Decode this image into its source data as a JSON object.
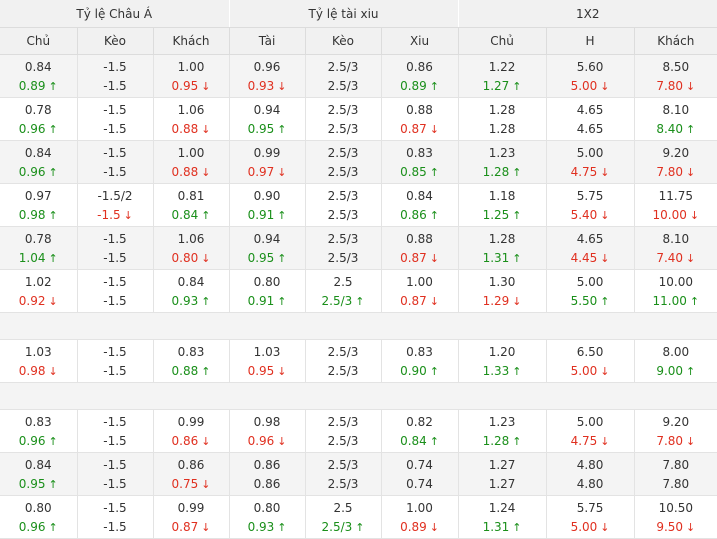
{
  "groups": [
    "Tỷ lệ Châu Á",
    "Tỷ lệ tài xiu",
    "1X2"
  ],
  "columns": [
    "Chủ",
    "Kèo",
    "Khách",
    "Tài",
    "Kèo",
    "Xiu",
    "Chủ",
    "H",
    "Khách"
  ],
  "arrows": {
    "up": "↑",
    "down": "↓"
  },
  "rows": [
    {
      "type": "data",
      "shade": true,
      "top": [
        "0.84",
        "-1.5",
        "1.00",
        "0.96",
        "2.5/3",
        "0.86",
        "1.22",
        "5.60",
        "8.50"
      ],
      "bottom": [
        {
          "v": "0.89",
          "d": "up"
        },
        {
          "v": "-1.5",
          "d": ""
        },
        {
          "v": "0.95",
          "d": "down"
        },
        {
          "v": "0.93",
          "d": "down"
        },
        {
          "v": "2.5/3",
          "d": ""
        },
        {
          "v": "0.89",
          "d": "up"
        },
        {
          "v": "1.27",
          "d": "up"
        },
        {
          "v": "5.00",
          "d": "down"
        },
        {
          "v": "7.80",
          "d": "down"
        }
      ]
    },
    {
      "type": "data",
      "shade": false,
      "top": [
        "0.78",
        "-1.5",
        "1.06",
        "0.94",
        "2.5/3",
        "0.88",
        "1.28",
        "4.65",
        "8.10"
      ],
      "bottom": [
        {
          "v": "0.96",
          "d": "up"
        },
        {
          "v": "-1.5",
          "d": ""
        },
        {
          "v": "0.88",
          "d": "down"
        },
        {
          "v": "0.95",
          "d": "up"
        },
        {
          "v": "2.5/3",
          "d": ""
        },
        {
          "v": "0.87",
          "d": "down"
        },
        {
          "v": "1.28",
          "d": ""
        },
        {
          "v": "4.65",
          "d": ""
        },
        {
          "v": "8.40",
          "d": "up"
        }
      ]
    },
    {
      "type": "data",
      "shade": true,
      "top": [
        "0.84",
        "-1.5",
        "1.00",
        "0.99",
        "2.5/3",
        "0.83",
        "1.23",
        "5.00",
        "9.20"
      ],
      "bottom": [
        {
          "v": "0.96",
          "d": "up"
        },
        {
          "v": "-1.5",
          "d": ""
        },
        {
          "v": "0.88",
          "d": "down"
        },
        {
          "v": "0.97",
          "d": "down"
        },
        {
          "v": "2.5/3",
          "d": ""
        },
        {
          "v": "0.85",
          "d": "up"
        },
        {
          "v": "1.28",
          "d": "up"
        },
        {
          "v": "4.75",
          "d": "down"
        },
        {
          "v": "7.80",
          "d": "down"
        }
      ]
    },
    {
      "type": "data",
      "shade": false,
      "top": [
        "0.97",
        "-1.5/2",
        "0.81",
        "0.90",
        "2.5/3",
        "0.84",
        "1.18",
        "5.75",
        "11.75"
      ],
      "bottom": [
        {
          "v": "0.98",
          "d": "up"
        },
        {
          "v": "-1.5",
          "d": "down"
        },
        {
          "v": "0.84",
          "d": "up"
        },
        {
          "v": "0.91",
          "d": "up"
        },
        {
          "v": "2.5/3",
          "d": ""
        },
        {
          "v": "0.86",
          "d": "up"
        },
        {
          "v": "1.25",
          "d": "up"
        },
        {
          "v": "5.40",
          "d": "down"
        },
        {
          "v": "10.00",
          "d": "down"
        }
      ]
    },
    {
      "type": "data",
      "shade": true,
      "top": [
        "0.78",
        "-1.5",
        "1.06",
        "0.94",
        "2.5/3",
        "0.88",
        "1.28",
        "4.65",
        "8.10"
      ],
      "bottom": [
        {
          "v": "1.04",
          "d": "up"
        },
        {
          "v": "-1.5",
          "d": ""
        },
        {
          "v": "0.80",
          "d": "down"
        },
        {
          "v": "0.95",
          "d": "up"
        },
        {
          "v": "2.5/3",
          "d": ""
        },
        {
          "v": "0.87",
          "d": "down"
        },
        {
          "v": "1.31",
          "d": "up"
        },
        {
          "v": "4.45",
          "d": "down"
        },
        {
          "v": "7.40",
          "d": "down"
        }
      ]
    },
    {
      "type": "data",
      "shade": false,
      "top": [
        "1.02",
        "-1.5",
        "0.84",
        "0.80",
        "2.5",
        "1.00",
        "1.30",
        "5.00",
        "10.00"
      ],
      "bottom": [
        {
          "v": "0.92",
          "d": "down"
        },
        {
          "v": "-1.5",
          "d": ""
        },
        {
          "v": "0.93",
          "d": "up"
        },
        {
          "v": "0.91",
          "d": "up"
        },
        {
          "v": "2.5/3",
          "d": "up"
        },
        {
          "v": "0.87",
          "d": "down"
        },
        {
          "v": "1.29",
          "d": "down"
        },
        {
          "v": "5.50",
          "d": "up"
        },
        {
          "v": "11.00",
          "d": "up"
        }
      ]
    },
    {
      "type": "spacer"
    },
    {
      "type": "data",
      "shade": false,
      "top": [
        "1.03",
        "-1.5",
        "0.83",
        "1.03",
        "2.5/3",
        "0.83",
        "1.20",
        "6.50",
        "8.00"
      ],
      "bottom": [
        {
          "v": "0.98",
          "d": "down"
        },
        {
          "v": "-1.5",
          "d": ""
        },
        {
          "v": "0.88",
          "d": "up"
        },
        {
          "v": "0.95",
          "d": "down"
        },
        {
          "v": "2.5/3",
          "d": ""
        },
        {
          "v": "0.90",
          "d": "up"
        },
        {
          "v": "1.33",
          "d": "up"
        },
        {
          "v": "5.00",
          "d": "down"
        },
        {
          "v": "9.00",
          "d": "up"
        }
      ]
    },
    {
      "type": "spacer"
    },
    {
      "type": "data",
      "shade": false,
      "top": [
        "0.83",
        "-1.5",
        "0.99",
        "0.98",
        "2.5/3",
        "0.82",
        "1.23",
        "5.00",
        "9.20"
      ],
      "bottom": [
        {
          "v": "0.96",
          "d": "up"
        },
        {
          "v": "-1.5",
          "d": ""
        },
        {
          "v": "0.86",
          "d": "down"
        },
        {
          "v": "0.96",
          "d": "down"
        },
        {
          "v": "2.5/3",
          "d": ""
        },
        {
          "v": "0.84",
          "d": "up"
        },
        {
          "v": "1.28",
          "d": "up"
        },
        {
          "v": "4.75",
          "d": "down"
        },
        {
          "v": "7.80",
          "d": "down"
        }
      ]
    },
    {
      "type": "data",
      "shade": true,
      "top": [
        "0.84",
        "-1.5",
        "0.86",
        "0.86",
        "2.5/3",
        "0.74",
        "1.27",
        "4.80",
        "7.80"
      ],
      "bottom": [
        {
          "v": "0.95",
          "d": "up"
        },
        {
          "v": "-1.5",
          "d": ""
        },
        {
          "v": "0.75",
          "d": "down"
        },
        {
          "v": "0.86",
          "d": ""
        },
        {
          "v": "2.5/3",
          "d": ""
        },
        {
          "v": "0.74",
          "d": ""
        },
        {
          "v": "1.27",
          "d": ""
        },
        {
          "v": "4.80",
          "d": ""
        },
        {
          "v": "7.80",
          "d": ""
        }
      ]
    },
    {
      "type": "data",
      "shade": false,
      "top": [
        "0.80",
        "-1.5",
        "0.99",
        "0.80",
        "2.5",
        "1.00",
        "1.24",
        "5.75",
        "10.50"
      ],
      "bottom": [
        {
          "v": "0.96",
          "d": "up"
        },
        {
          "v": "-1.5",
          "d": ""
        },
        {
          "v": "0.87",
          "d": "down"
        },
        {
          "v": "0.93",
          "d": "up"
        },
        {
          "v": "2.5/3",
          "d": "up"
        },
        {
          "v": "0.89",
          "d": "down"
        },
        {
          "v": "1.31",
          "d": "up"
        },
        {
          "v": "5.00",
          "d": "down"
        },
        {
          "v": "9.50",
          "d": "down"
        }
      ]
    }
  ]
}
